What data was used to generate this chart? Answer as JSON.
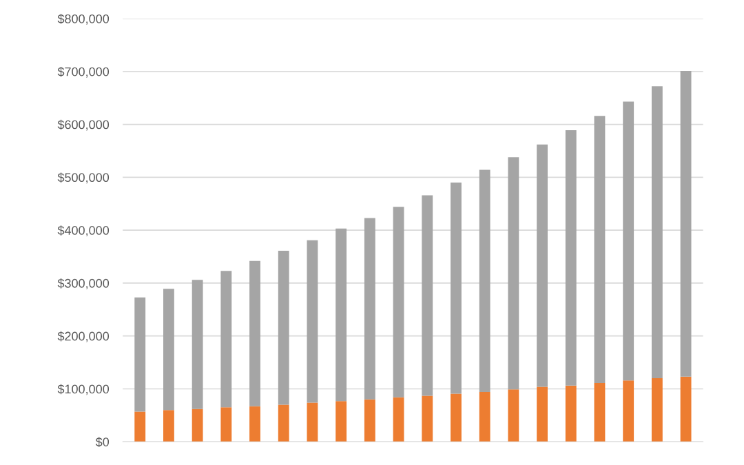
{
  "chart_data": {
    "type": "bar",
    "stacked": true,
    "categories": [
      null,
      null,
      null,
      null,
      null,
      null,
      null,
      null,
      null,
      null,
      null,
      null,
      null,
      null,
      null,
      null,
      null,
      null,
      null,
      null
    ],
    "series": [
      {
        "color": "#ed7d31",
        "values": [
          57000,
          60000,
          62000,
          65000,
          67000,
          70000,
          74000,
          77000,
          80000,
          84000,
          87000,
          91000,
          94000,
          99000,
          104000,
          106000,
          111000,
          116000,
          120000,
          123000
        ]
      },
      {
        "color": "#a5a5a5",
        "values": [
          216000,
          229000,
          244000,
          258000,
          275000,
          291000,
          307000,
          326000,
          343000,
          360000,
          379000,
          399000,
          420000,
          439000,
          458000,
          483000,
          505000,
          527000,
          552000,
          578000
        ]
      }
    ],
    "ylim": [
      0,
      800000
    ],
    "yticks": [
      {
        "value": 0,
        "label": "$0"
      },
      {
        "value": 100000,
        "label": "$100,000"
      },
      {
        "value": 200000,
        "label": "$200,000"
      },
      {
        "value": 300000,
        "label": "$300,000"
      },
      {
        "value": 400000,
        "label": "$400,000"
      },
      {
        "value": 500000,
        "label": "$500,000"
      },
      {
        "value": 600000,
        "label": "$600,000"
      },
      {
        "value": 700000,
        "label": "$700,000"
      },
      {
        "value": 800000,
        "label": "$800,000"
      }
    ],
    "grid": "y",
    "legend": false
  }
}
